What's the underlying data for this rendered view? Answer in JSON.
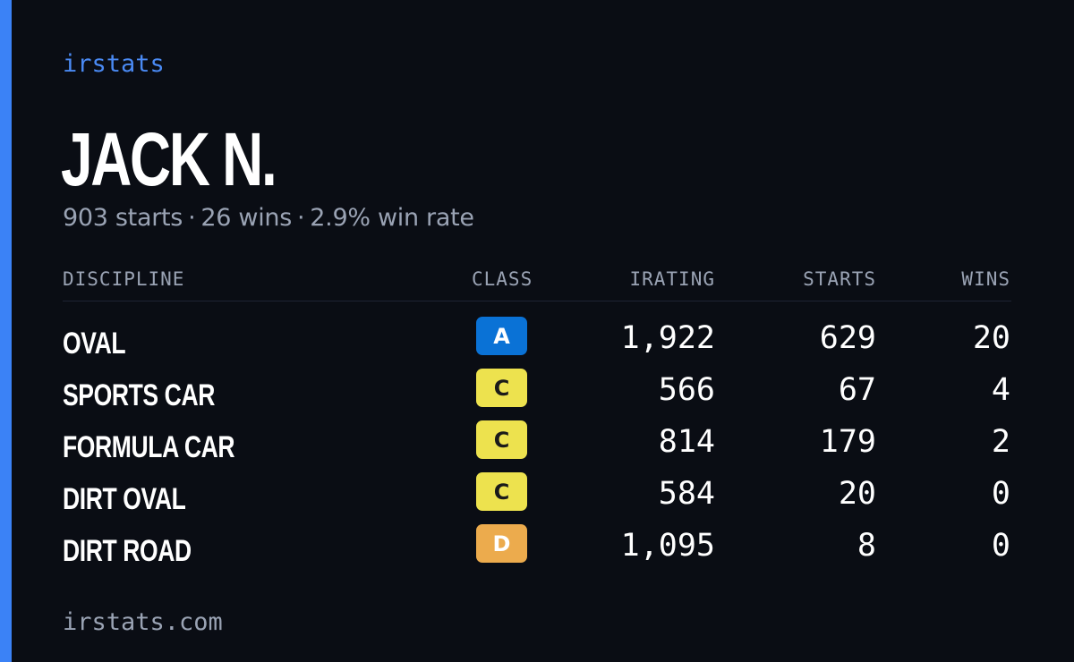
{
  "brand": "irstats",
  "driver": {
    "name": "JACK N.",
    "starts_text": "903 starts",
    "wins_text": "26 wins",
    "winrate_text": "2.9% win rate",
    "separator": "·"
  },
  "table": {
    "headers": {
      "discipline": "DISCIPLINE",
      "class": "CLASS",
      "irating": "IRATING",
      "starts": "STARTS",
      "wins": "WINS"
    },
    "rows": [
      {
        "discipline": "OVAL",
        "class": "A",
        "class_bg": "#0a72d6",
        "class_fg": "#ffffff",
        "irating": "1,922",
        "starts": "629",
        "wins": "20"
      },
      {
        "discipline": "SPORTS CAR",
        "class": "C",
        "class_bg": "#ede24e",
        "class_fg": "#1a1a1a",
        "irating": "566",
        "starts": "67",
        "wins": "4"
      },
      {
        "discipline": "FORMULA CAR",
        "class": "C",
        "class_bg": "#ede24e",
        "class_fg": "#1a1a1a",
        "irating": "814",
        "starts": "179",
        "wins": "2"
      },
      {
        "discipline": "DIRT OVAL",
        "class": "C",
        "class_bg": "#ede24e",
        "class_fg": "#1a1a1a",
        "irating": "584",
        "starts": "20",
        "wins": "0"
      },
      {
        "discipline": "DIRT ROAD",
        "class": "D",
        "class_bg": "#ecab4d",
        "class_fg": "#ffffff",
        "irating": "1,095",
        "starts": "8",
        "wins": "0"
      }
    ]
  },
  "footer": "irstats.com",
  "colors": {
    "background": "#0a0d14",
    "accent": "#3b82f6",
    "muted_text": "#9aa3b4"
  }
}
